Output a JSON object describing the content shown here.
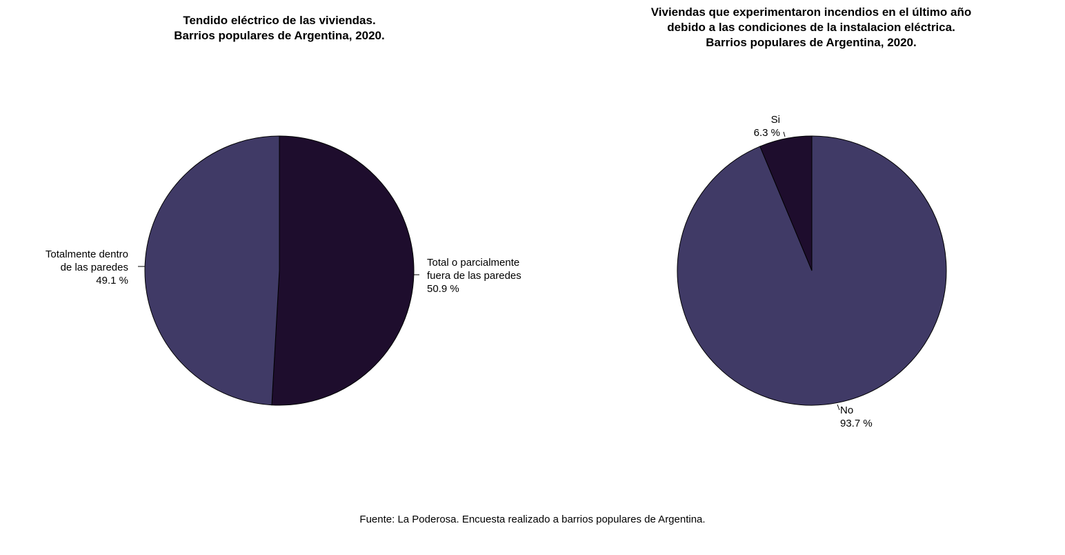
{
  "chart_data": [
    {
      "type": "pie",
      "title_lines": [
        "Tendido eléctrico de las viviendas.",
        "Barrios populares de Argentina, 2020."
      ],
      "slices": [
        {
          "label_lines": [
            "Total o parcialmente",
            "fuera de las paredes"
          ],
          "pct_label": "50.9 %",
          "value": 50.9,
          "color": "#1e0d2d"
        },
        {
          "label_lines": [
            "Totalmente dentro",
            "de las paredes"
          ],
          "pct_label": "49.1 %",
          "value": 49.1,
          "color": "#403a66"
        }
      ]
    },
    {
      "type": "pie",
      "title_lines": [
        "Viviendas que experimentaron incendios en el último año",
        "debido a las condiciones de la instalacion eléctrica.",
        "Barrios populares de Argentina, 2020."
      ],
      "slices": [
        {
          "label_lines": [
            "No"
          ],
          "pct_label": "93.7 %",
          "value": 93.7,
          "color": "#403a66"
        },
        {
          "label_lines": [
            "Si"
          ],
          "pct_label": "6.3 %",
          "value": 6.3,
          "color": "#1e0d2d"
        }
      ]
    }
  ],
  "source": "Fuente: La Poderosa. Encuesta realizado a barrios populares de Argentina."
}
